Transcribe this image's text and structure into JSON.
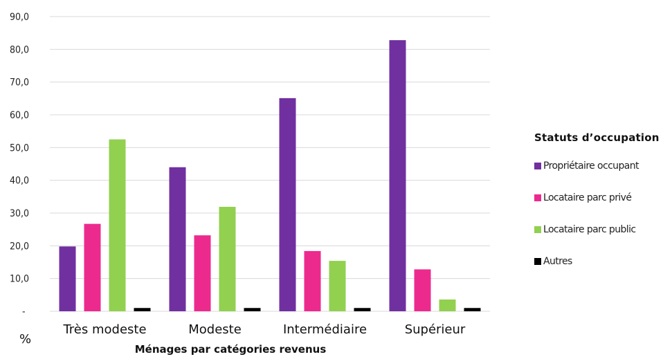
{
  "chart_data": {
    "type": "bar",
    "categories": [
      "Très modeste",
      "Modeste",
      "Intermédiaire",
      "Supérieur"
    ],
    "series": [
      {
        "name": "Propriétaire occupant",
        "color": "#7030a0",
        "values": [
          19.8,
          44.0,
          65.1,
          82.8
        ]
      },
      {
        "name": "Locataire parc privé",
        "color": "#ec2a8e",
        "values": [
          26.7,
          23.2,
          18.4,
          12.8
        ]
      },
      {
        "name": "Locataire parc public",
        "color": "#92d050",
        "values": [
          52.5,
          31.9,
          15.4,
          3.6
        ]
      },
      {
        "name": "Autres",
        "color": "#000000",
        "values": [
          1.0,
          1.0,
          1.0,
          1.0
        ]
      }
    ],
    "y_ticks": [
      "-",
      "10,0",
      "20,0",
      "30,0",
      "40,0",
      "50,0",
      "60,0",
      "70,0",
      "80,0",
      "90,0"
    ],
    "ylim": [
      0,
      90
    ],
    "ylabel": "%",
    "xlabel": "Ménages par catégories revenus",
    "legend_title": "Statuts d’occupation",
    "legend_position": "right",
    "grid": true
  }
}
